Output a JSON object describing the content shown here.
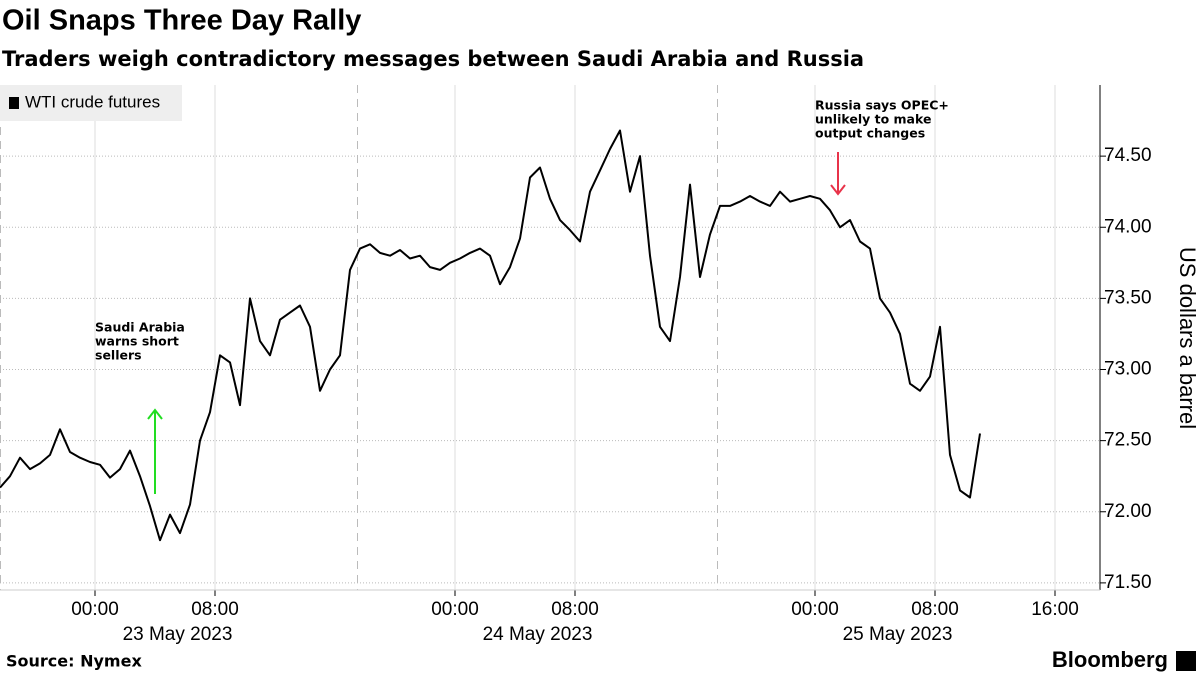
{
  "chart_data": {
    "type": "line",
    "title": "Oil Snaps Three Day Rally",
    "subtitle": "Traders weigh contradictory messages between Saudi Arabia and Russia",
    "source": "Source: Nymex",
    "brand": "Bloomberg",
    "ylabel": "US dollars a barrel",
    "legend": "top-left",
    "grid": true,
    "xlim": [
      "2023-05-22T17:40",
      "2023-05-25T19:00"
    ],
    "ylim": [
      71.45,
      75.0
    ],
    "yticks": [
      {
        "value": 71.5,
        "label": "71.50"
      },
      {
        "value": 72,
        "label": "72.00"
      },
      {
        "value": 72.5,
        "label": "72.50"
      },
      {
        "value": 73,
        "label": "73.00"
      },
      {
        "value": 73.5,
        "label": "73.50"
      },
      {
        "value": 74,
        "label": "74.00"
      },
      {
        "value": 74.5,
        "label": "74.50"
      }
    ],
    "xticks": [
      {
        "value": "2023-05-23T00:00",
        "label": "00:00"
      },
      {
        "value": "2023-05-23T08:00",
        "label": "08:00"
      },
      {
        "value": "2023-05-24T00:00",
        "label": "00:00"
      },
      {
        "value": "2023-05-24T08:00",
        "label": "08:00"
      },
      {
        "value": "2023-05-25T00:00",
        "label": "00:00"
      },
      {
        "value": "2023-05-25T08:00",
        "label": "08:00"
      },
      {
        "value": "2023-05-25T16:00",
        "label": "16:00"
      }
    ],
    "date_labels": [
      {
        "value": "2023-05-23T05:30",
        "label": "23 May 2023"
      },
      {
        "value": "2023-05-24T05:30",
        "label": "24 May 2023"
      },
      {
        "value": "2023-05-25T05:30",
        "label": "25 May 2023"
      }
    ],
    "session_breaks": [
      "2023-05-23T17:30",
      "2023-05-24T17:30"
    ],
    "annotations": [
      {
        "text": [
          "Saudi Arabia",
          "warns short",
          "sellers"
        ],
        "color": "#b5e07a",
        "arrow_color": "#22dd22"
      },
      {
        "text": [
          "Russia says OPEC+",
          "unlikely to make",
          "output changes"
        ],
        "color": "#f4a7b9",
        "arrow_color": "#e8334a"
      }
    ],
    "x": [
      "2023-05-22T17:40",
      "2023-05-22T18:20",
      "2023-05-22T19:00",
      "2023-05-22T19:40",
      "2023-05-22T20:20",
      "2023-05-22T21:00",
      "2023-05-22T21:40",
      "2023-05-22T22:20",
      "2023-05-22T23:00",
      "2023-05-22T23:40",
      "2023-05-23T00:20",
      "2023-05-23T01:00",
      "2023-05-23T01:40",
      "2023-05-23T02:20",
      "2023-05-23T03:00",
      "2023-05-23T03:40",
      "2023-05-23T04:20",
      "2023-05-23T05:00",
      "2023-05-23T05:40",
      "2023-05-23T06:20",
      "2023-05-23T07:00",
      "2023-05-23T07:40",
      "2023-05-23T08:20",
      "2023-05-23T09:00",
      "2023-05-23T09:40",
      "2023-05-23T10:20",
      "2023-05-23T11:00",
      "2023-05-23T11:40",
      "2023-05-23T12:20",
      "2023-05-23T13:00",
      "2023-05-23T13:40",
      "2023-05-23T14:20",
      "2023-05-23T15:00",
      "2023-05-23T15:40",
      "2023-05-23T16:20",
      "2023-05-23T17:00",
      "2023-05-23T17:40",
      "2023-05-23T18:20",
      "2023-05-23T19:00",
      "2023-05-23T19:40",
      "2023-05-23T20:20",
      "2023-05-23T21:00",
      "2023-05-23T21:40",
      "2023-05-23T22:20",
      "2023-05-23T23:00",
      "2023-05-23T23:40",
      "2023-05-24T00:20",
      "2023-05-24T01:00",
      "2023-05-24T01:40",
      "2023-05-24T02:20",
      "2023-05-24T03:00",
      "2023-05-24T03:40",
      "2023-05-24T04:20",
      "2023-05-24T05:00",
      "2023-05-24T05:40",
      "2023-05-24T06:20",
      "2023-05-24T07:00",
      "2023-05-24T07:40",
      "2023-05-24T08:20",
      "2023-05-24T09:00",
      "2023-05-24T09:40",
      "2023-05-24T10:20",
      "2023-05-24T11:00",
      "2023-05-24T11:40",
      "2023-05-24T12:20",
      "2023-05-24T13:00",
      "2023-05-24T13:40",
      "2023-05-24T14:20",
      "2023-05-24T15:00",
      "2023-05-24T15:40",
      "2023-05-24T16:20",
      "2023-05-24T17:00",
      "2023-05-24T17:40",
      "2023-05-24T18:20",
      "2023-05-24T19:00",
      "2023-05-24T19:40",
      "2023-05-24T20:20",
      "2023-05-24T21:00",
      "2023-05-24T21:40",
      "2023-05-24T22:20",
      "2023-05-24T23:00",
      "2023-05-24T23:40",
      "2023-05-25T00:20",
      "2023-05-25T01:00",
      "2023-05-25T01:40",
      "2023-05-25T02:20",
      "2023-05-25T03:00",
      "2023-05-25T03:40",
      "2023-05-25T04:20",
      "2023-05-25T05:00",
      "2023-05-25T05:40",
      "2023-05-25T06:20",
      "2023-05-25T07:00",
      "2023-05-25T07:40",
      "2023-05-25T08:20",
      "2023-05-25T09:00",
      "2023-05-25T09:40",
      "2023-05-25T10:20",
      "2023-05-25T11:00"
    ],
    "series": [
      {
        "name": "WTI crude futures",
        "color": "#000000",
        "values": [
          72.17,
          72.25,
          72.38,
          72.3,
          72.34,
          72.4,
          72.58,
          72.42,
          72.38,
          72.35,
          72.33,
          72.24,
          72.3,
          72.43,
          72.25,
          72.04,
          71.8,
          71.98,
          71.85,
          72.05,
          72.5,
          72.7,
          73.1,
          73.05,
          72.75,
          73.5,
          73.2,
          73.1,
          73.35,
          73.4,
          73.45,
          73.3,
          72.85,
          73.0,
          73.1,
          73.7,
          73.85,
          73.88,
          73.82,
          73.8,
          73.84,
          73.78,
          73.8,
          73.72,
          73.7,
          73.75,
          73.78,
          73.82,
          73.85,
          73.8,
          73.6,
          73.72,
          73.92,
          74.35,
          74.42,
          74.2,
          74.05,
          73.98,
          73.9,
          74.25,
          74.4,
          74.55,
          74.68,
          74.25,
          74.5,
          73.8,
          73.3,
          73.2,
          73.65,
          74.3,
          73.65,
          73.95,
          74.15,
          74.15,
          74.18,
          74.22,
          74.18,
          74.15,
          74.25,
          74.18,
          74.2,
          74.22,
          74.2,
          74.12,
          74.0,
          74.05,
          73.9,
          73.85,
          73.5,
          73.4,
          73.25,
          72.9,
          72.85,
          72.95,
          73.3,
          72.4,
          72.15,
          72.1,
          72.55
        ]
      }
    ]
  }
}
